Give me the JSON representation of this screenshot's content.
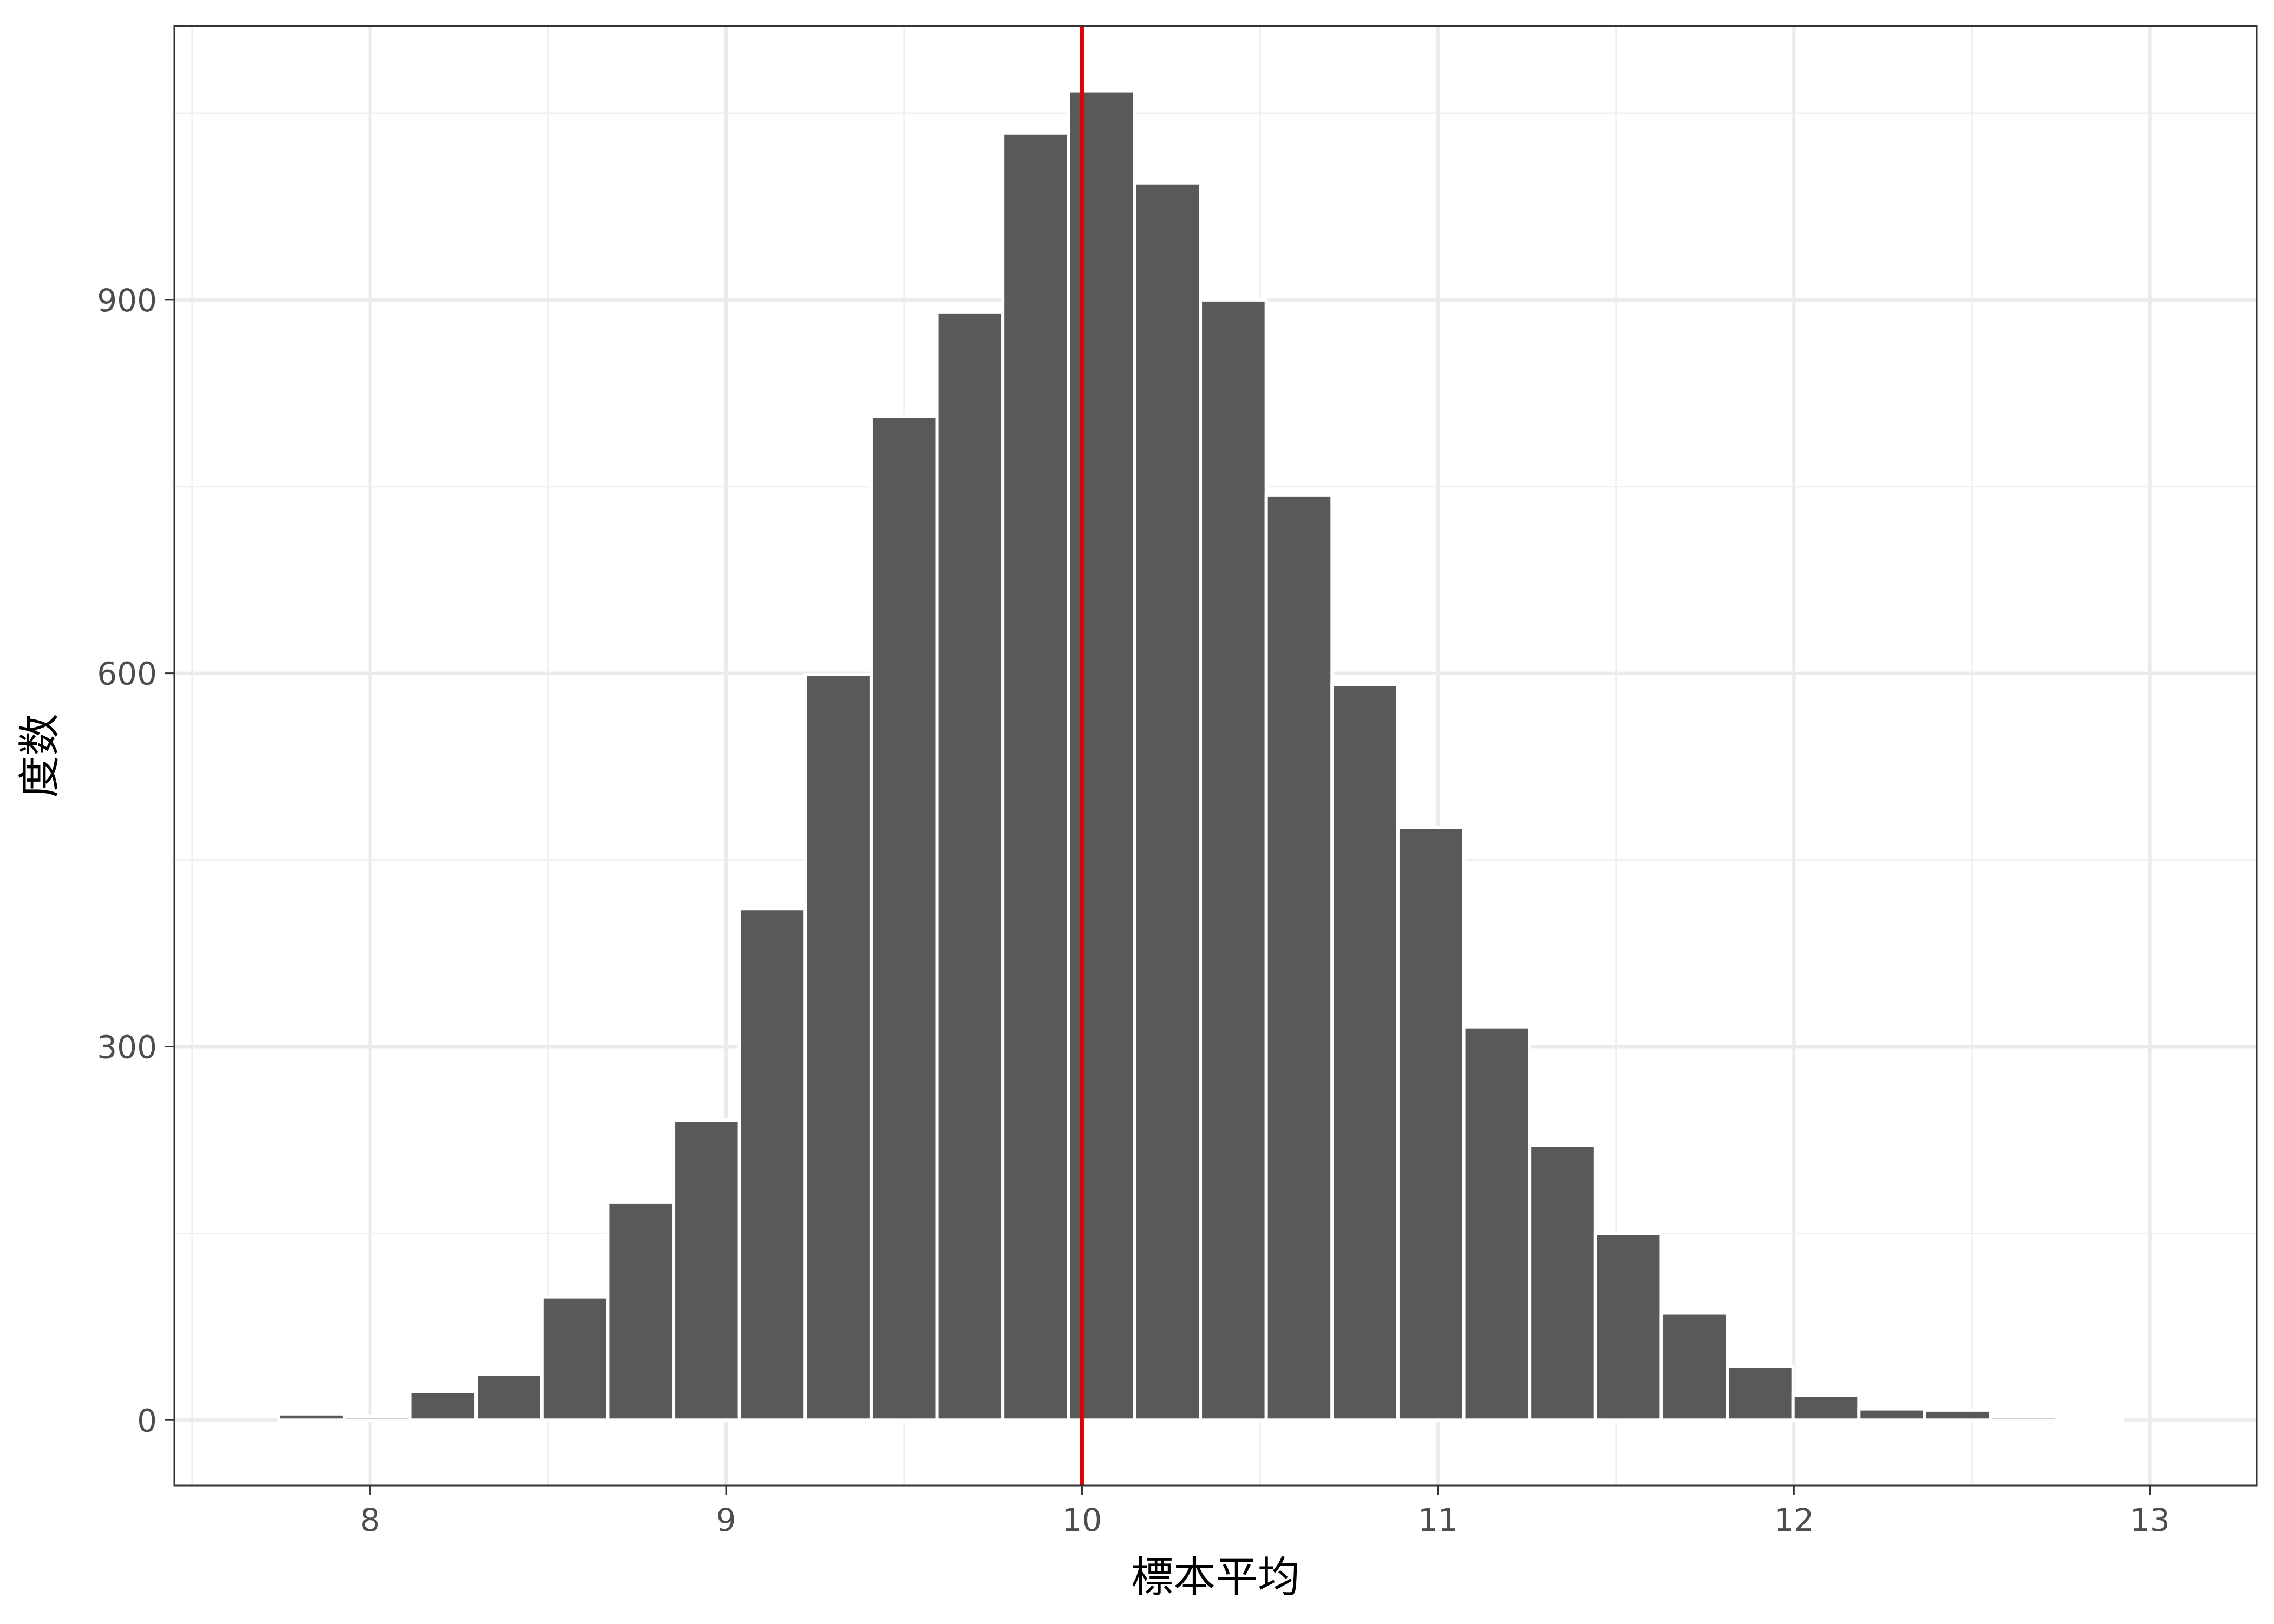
{
  "chart_data": {
    "type": "bar",
    "xlabel": "標本平均",
    "ylabel": "度数",
    "xlim": [
      7.45,
      13.3
    ],
    "ylim": [
      -52.5,
      1120
    ],
    "x_ticks": [
      8,
      9,
      10,
      11,
      12,
      13
    ],
    "x_tick_labels": [
      "8",
      "9",
      "10",
      "11",
      "12",
      "13"
    ],
    "y_ticks": [
      0,
      300,
      600,
      900
    ],
    "y_tick_labels": [
      "0",
      "300",
      "600",
      "900"
    ],
    "bin_width": 0.185,
    "bin_centers": [
      7.65,
      7.835,
      8.02,
      8.205,
      8.39,
      8.575,
      8.76,
      8.945,
      9.13,
      9.315,
      9.5,
      9.685,
      9.87,
      10.055,
      10.24,
      10.425,
      10.61,
      10.795,
      10.98,
      11.165,
      11.35,
      11.535,
      11.72,
      11.905,
      12.09,
      12.275,
      12.46,
      12.645,
      12.83,
      13.015
    ],
    "values": [
      0,
      5,
      3,
      23,
      37,
      99,
      175,
      241,
      411,
      599,
      806,
      890,
      1034,
      1068,
      994,
      900,
      743,
      591,
      476,
      316,
      221,
      150,
      86,
      43,
      20,
      9,
      8,
      3,
      1,
      0
    ],
    "reference_line": {
      "x": 10,
      "color": "#e00000"
    },
    "bar_color": "#595959",
    "grid": true,
    "legend": "none"
  }
}
